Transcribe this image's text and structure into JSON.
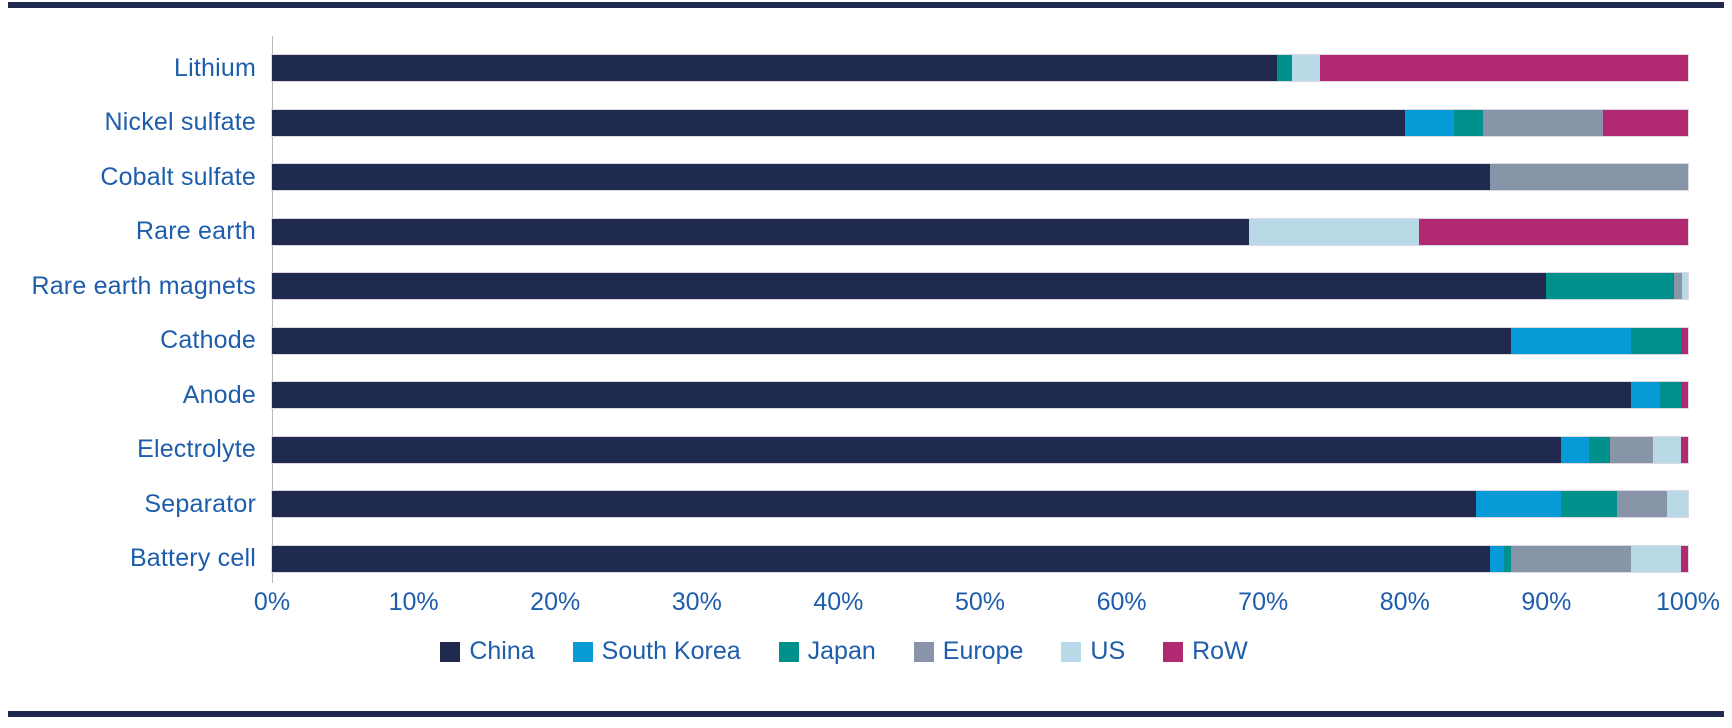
{
  "page": {
    "background": "#ffffff",
    "rule_color": "#1f2a4e",
    "text_color": "#1d5dab",
    "axis_line_color": "#b7b7b7"
  },
  "chart_data": {
    "type": "bar",
    "orientation": "horizontal",
    "stacked": true,
    "grid": false,
    "legend_position": "bottom",
    "title": "",
    "xlabel": "",
    "ylabel": "",
    "xlim": [
      0,
      100
    ],
    "x_ticks": [
      "0%",
      "10%",
      "20%",
      "30%",
      "40%",
      "50%",
      "60%",
      "70%",
      "80%",
      "90%",
      "100%"
    ],
    "categories": [
      "Lithium",
      "Nickel sulfate",
      "Cobalt sulfate",
      "Rare earth",
      "Rare earth magnets",
      "Cathode",
      "Anode",
      "Electrolyte",
      "Separator",
      "Battery cell"
    ],
    "series": [
      {
        "name": "China",
        "color": "#1f2a4e",
        "values": [
          71,
          80,
          86,
          69,
          90,
          87.5,
          96,
          91,
          85,
          86
        ]
      },
      {
        "name": "South Korea",
        "color": "#069bd7",
        "values": [
          0,
          3.5,
          0,
          0,
          0,
          8.5,
          2,
          2,
          6,
          1
        ]
      },
      {
        "name": "Japan",
        "color": "#00918c",
        "values": [
          1,
          2,
          0,
          0,
          9,
          3.5,
          1.5,
          1.5,
          4,
          0.5
        ]
      },
      {
        "name": "Europe",
        "color": "#8895a9",
        "values": [
          0,
          8.5,
          14,
          0,
          0.6,
          0,
          0,
          3,
          3.5,
          8.5
        ]
      },
      {
        "name": "US",
        "color": "#b9d9e6",
        "values": [
          2,
          0,
          0,
          12,
          0.4,
          0,
          0,
          2,
          1.5,
          3.5
        ]
      },
      {
        "name": "RoW",
        "color": "#b12a71",
        "values": [
          26,
          6,
          0,
          19,
          0,
          0.5,
          0.5,
          0.5,
          0,
          0.5
        ]
      }
    ]
  }
}
